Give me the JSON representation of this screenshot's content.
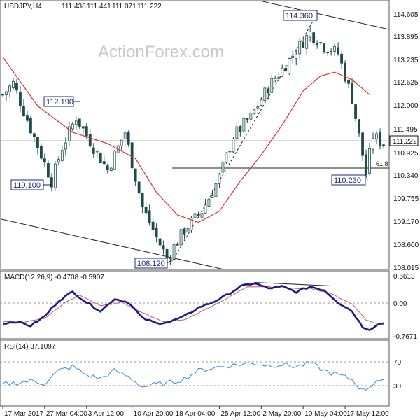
{
  "chart_data": {
    "type": "candlestick",
    "header": {
      "symbol": "USDJPY,H4",
      "open": "111.438",
      "high": "111.441",
      "low": "111.071",
      "close": "111.222"
    },
    "watermark": "ActionForex.com",
    "price_axis": {
      "ticks": [
        "114.605",
        "113.895",
        "113.235",
        "112.625",
        "112.000",
        "111.495",
        "110.925",
        "110.340",
        "109.755",
        "109.170",
        "108.600",
        "108.015"
      ],
      "current": "111.222",
      "ylim": [
        108.0,
        114.75
      ]
    },
    "annotations": [
      {
        "label": "114.360",
        "value": 114.36,
        "bar": 88
      },
      {
        "label": "112.190",
        "value": 112.19,
        "bar": 21
      },
      {
        "label": "110.100",
        "value": 110.1,
        "bar": 14
      },
      {
        "label": "108.120",
        "value": 108.12,
        "bar": 47
      },
      {
        "label": "110.230",
        "value": 110.23,
        "bar": 104
      }
    ],
    "fib_label": "61.8",
    "fib_level": 110.57,
    "key_points": [
      {
        "bar": 0,
        "price": 112.6
      },
      {
        "bar": 3,
        "price": 112.9
      },
      {
        "bar": 8,
        "price": 111.7
      },
      {
        "bar": 14,
        "price": 110.3
      },
      {
        "bar": 17,
        "price": 111.2
      },
      {
        "bar": 21,
        "price": 112.0
      },
      {
        "bar": 26,
        "price": 111.2
      },
      {
        "bar": 30,
        "price": 110.6
      },
      {
        "bar": 35,
        "price": 111.6
      },
      {
        "bar": 40,
        "price": 109.6
      },
      {
        "bar": 44,
        "price": 108.8
      },
      {
        "bar": 47,
        "price": 108.25
      },
      {
        "bar": 52,
        "price": 109.0
      },
      {
        "bar": 57,
        "price": 109.5
      },
      {
        "bar": 62,
        "price": 110.4
      },
      {
        "bar": 66,
        "price": 111.5
      },
      {
        "bar": 71,
        "price": 112.0
      },
      {
        "bar": 76,
        "price": 112.8
      },
      {
        "bar": 81,
        "price": 113.4
      },
      {
        "bar": 85,
        "price": 113.9
      },
      {
        "bar": 88,
        "price": 114.25
      },
      {
        "bar": 92,
        "price": 113.9
      },
      {
        "bar": 96,
        "price": 113.7
      },
      {
        "bar": 100,
        "price": 112.5
      },
      {
        "bar": 103,
        "price": 111.0
      },
      {
        "bar": 104,
        "price": 110.5
      },
      {
        "bar": 106,
        "price": 111.5
      },
      {
        "bar": 109,
        "price": 111.3
      }
    ],
    "ma_points": [
      {
        "bar": 0,
        "price": 113.6
      },
      {
        "bar": 10,
        "price": 112.3
      },
      {
        "bar": 20,
        "price": 111.6
      },
      {
        "bar": 30,
        "price": 111.3
      },
      {
        "bar": 38,
        "price": 110.9
      },
      {
        "bar": 44,
        "price": 110.0
      },
      {
        "bar": 50,
        "price": 109.4
      },
      {
        "bar": 56,
        "price": 109.2
      },
      {
        "bar": 62,
        "price": 109.5
      },
      {
        "bar": 68,
        "price": 110.3
      },
      {
        "bar": 74,
        "price": 111.0
      },
      {
        "bar": 80,
        "price": 111.8
      },
      {
        "bar": 86,
        "price": 112.7
      },
      {
        "bar": 91,
        "price": 113.1
      },
      {
        "bar": 95,
        "price": 113.2
      },
      {
        "bar": 100,
        "price": 113.0
      },
      {
        "bar": 105,
        "price": 112.6
      }
    ],
    "macd": {
      "label": "MACD(12,26,9) -0.4708 -0.5907",
      "ticks": [
        "0.6613",
        "0.00",
        "-0.7671"
      ],
      "ylim": [
        -0.95,
        0.85
      ],
      "macd_points": [
        {
          "bar": 0,
          "v": -0.55
        },
        {
          "bar": 4,
          "v": -0.5
        },
        {
          "bar": 8,
          "v": -0.62
        },
        {
          "bar": 12,
          "v": -0.35
        },
        {
          "bar": 16,
          "v": 0.1
        },
        {
          "bar": 20,
          "v": 0.35
        },
        {
          "bar": 24,
          "v": 0.05
        },
        {
          "bar": 28,
          "v": -0.2
        },
        {
          "bar": 32,
          "v": 0.15
        },
        {
          "bar": 36,
          "v": 0.05
        },
        {
          "bar": 40,
          "v": -0.4
        },
        {
          "bar": 44,
          "v": -0.55
        },
        {
          "bar": 48,
          "v": -0.5
        },
        {
          "bar": 52,
          "v": -0.35
        },
        {
          "bar": 56,
          "v": -0.1
        },
        {
          "bar": 60,
          "v": 0.05
        },
        {
          "bar": 64,
          "v": 0.25
        },
        {
          "bar": 68,
          "v": 0.5
        },
        {
          "bar": 72,
          "v": 0.6
        },
        {
          "bar": 76,
          "v": 0.45
        },
        {
          "bar": 80,
          "v": 0.5
        },
        {
          "bar": 84,
          "v": 0.35
        },
        {
          "bar": 88,
          "v": 0.5
        },
        {
          "bar": 92,
          "v": 0.4
        },
        {
          "bar": 96,
          "v": 0.05
        },
        {
          "bar": 100,
          "v": -0.2
        },
        {
          "bar": 103,
          "v": -0.65
        },
        {
          "bar": 105,
          "v": -0.72
        },
        {
          "bar": 108,
          "v": -0.55
        }
      ],
      "signal_points": [
        {
          "bar": 0,
          "v": -0.5
        },
        {
          "bar": 6,
          "v": -0.52
        },
        {
          "bar": 12,
          "v": -0.4
        },
        {
          "bar": 18,
          "v": 0.05
        },
        {
          "bar": 22,
          "v": 0.25
        },
        {
          "bar": 28,
          "v": -0.05
        },
        {
          "bar": 34,
          "v": 0.05
        },
        {
          "bar": 40,
          "v": -0.25
        },
        {
          "bar": 46,
          "v": -0.5
        },
        {
          "bar": 52,
          "v": -0.45
        },
        {
          "bar": 58,
          "v": -0.15
        },
        {
          "bar": 64,
          "v": 0.15
        },
        {
          "bar": 70,
          "v": 0.5
        },
        {
          "bar": 76,
          "v": 0.5
        },
        {
          "bar": 82,
          "v": 0.45
        },
        {
          "bar": 88,
          "v": 0.45
        },
        {
          "bar": 94,
          "v": 0.3
        },
        {
          "bar": 100,
          "v": 0.0
        },
        {
          "bar": 104,
          "v": -0.45
        },
        {
          "bar": 108,
          "v": -0.6
        }
      ],
      "trendline": [
        {
          "bar": 72,
          "v": 0.62
        },
        {
          "bar": 94,
          "v": 0.52
        }
      ]
    },
    "rsi": {
      "label": "RSI(14) 37.1097",
      "ticks": [
        "70",
        "30"
      ],
      "ylim": [
        0,
        100
      ],
      "points": [
        {
          "bar": 0,
          "v": 32
        },
        {
          "bar": 4,
          "v": 35
        },
        {
          "bar": 8,
          "v": 38
        },
        {
          "bar": 12,
          "v": 34
        },
        {
          "bar": 16,
          "v": 55
        },
        {
          "bar": 20,
          "v": 62
        },
        {
          "bar": 24,
          "v": 48
        },
        {
          "bar": 28,
          "v": 42
        },
        {
          "bar": 32,
          "v": 55
        },
        {
          "bar": 36,
          "v": 45
        },
        {
          "bar": 40,
          "v": 28
        },
        {
          "bar": 44,
          "v": 32
        },
        {
          "bar": 48,
          "v": 35
        },
        {
          "bar": 52,
          "v": 42
        },
        {
          "bar": 56,
          "v": 55
        },
        {
          "bar": 60,
          "v": 60
        },
        {
          "bar": 64,
          "v": 63
        },
        {
          "bar": 68,
          "v": 66
        },
        {
          "bar": 72,
          "v": 68
        },
        {
          "bar": 76,
          "v": 64
        },
        {
          "bar": 80,
          "v": 66
        },
        {
          "bar": 84,
          "v": 62
        },
        {
          "bar": 88,
          "v": 68
        },
        {
          "bar": 92,
          "v": 55
        },
        {
          "bar": 96,
          "v": 48
        },
        {
          "bar": 100,
          "v": 40
        },
        {
          "bar": 103,
          "v": 22
        },
        {
          "bar": 105,
          "v": 28
        },
        {
          "bar": 107,
          "v": 40
        },
        {
          "bar": 109,
          "v": 37
        }
      ]
    },
    "time_axis": [
      {
        "bar": 0,
        "label": "17 Mar 2017"
      },
      {
        "bar": 12,
        "label": "27 Mar 04:00"
      },
      {
        "bar": 24,
        "label": "3 Apr 12:00"
      },
      {
        "bar": 37,
        "label": "10 Apr 20:00"
      },
      {
        "bar": 49,
        "label": "18 Apr 04:00"
      },
      {
        "bar": 62,
        "label": "25 Apr 12:00"
      },
      {
        "bar": 74,
        "label": "2 May 20:00"
      },
      {
        "bar": 86,
        "label": "10 May 04:00"
      },
      {
        "bar": 98,
        "label": "17 May 12:00"
      }
    ],
    "bar_count": 110
  }
}
